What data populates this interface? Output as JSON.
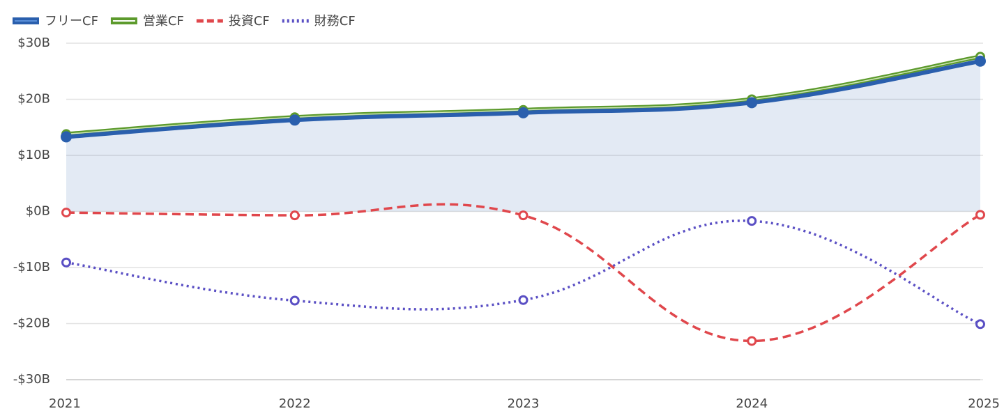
{
  "chart_data": {
    "type": "line",
    "categories": [
      "2021",
      "2022",
      "2023",
      "2024",
      "2025"
    ],
    "series": [
      {
        "name": "フリーCF",
        "color": "#2a5fad",
        "style": "solid",
        "fill": true,
        "values": [
          13.3,
          16.3,
          17.6,
          19.4,
          26.8
        ]
      },
      {
        "name": "営業CF",
        "color": "#5c9a2c",
        "style": "double",
        "values": [
          13.8,
          16.8,
          18.1,
          20.0,
          27.6
        ]
      },
      {
        "name": "投資CF",
        "color": "#e0474c",
        "style": "dashed",
        "values": [
          -0.2,
          -0.7,
          -0.7,
          -23.1,
          -0.6
        ]
      },
      {
        "name": "財務CF",
        "color": "#5a4fc4",
        "style": "dotted",
        "values": [
          -9.1,
          -15.9,
          -15.8,
          -1.7,
          -20.1
        ]
      }
    ],
    "ylim": [
      -30,
      30
    ],
    "yticks": [
      {
        "value": -30,
        "label": "-$30B"
      },
      {
        "value": -20,
        "label": "-$20B"
      },
      {
        "value": -10,
        "label": "-$10B"
      },
      {
        "value": 0,
        "label": "$0B"
      },
      {
        "value": 10,
        "label": "$10B"
      },
      {
        "value": 20,
        "label": "$20B"
      },
      {
        "value": 30,
        "label": "$30B"
      }
    ],
    "grid": true,
    "legend": "top-left"
  }
}
